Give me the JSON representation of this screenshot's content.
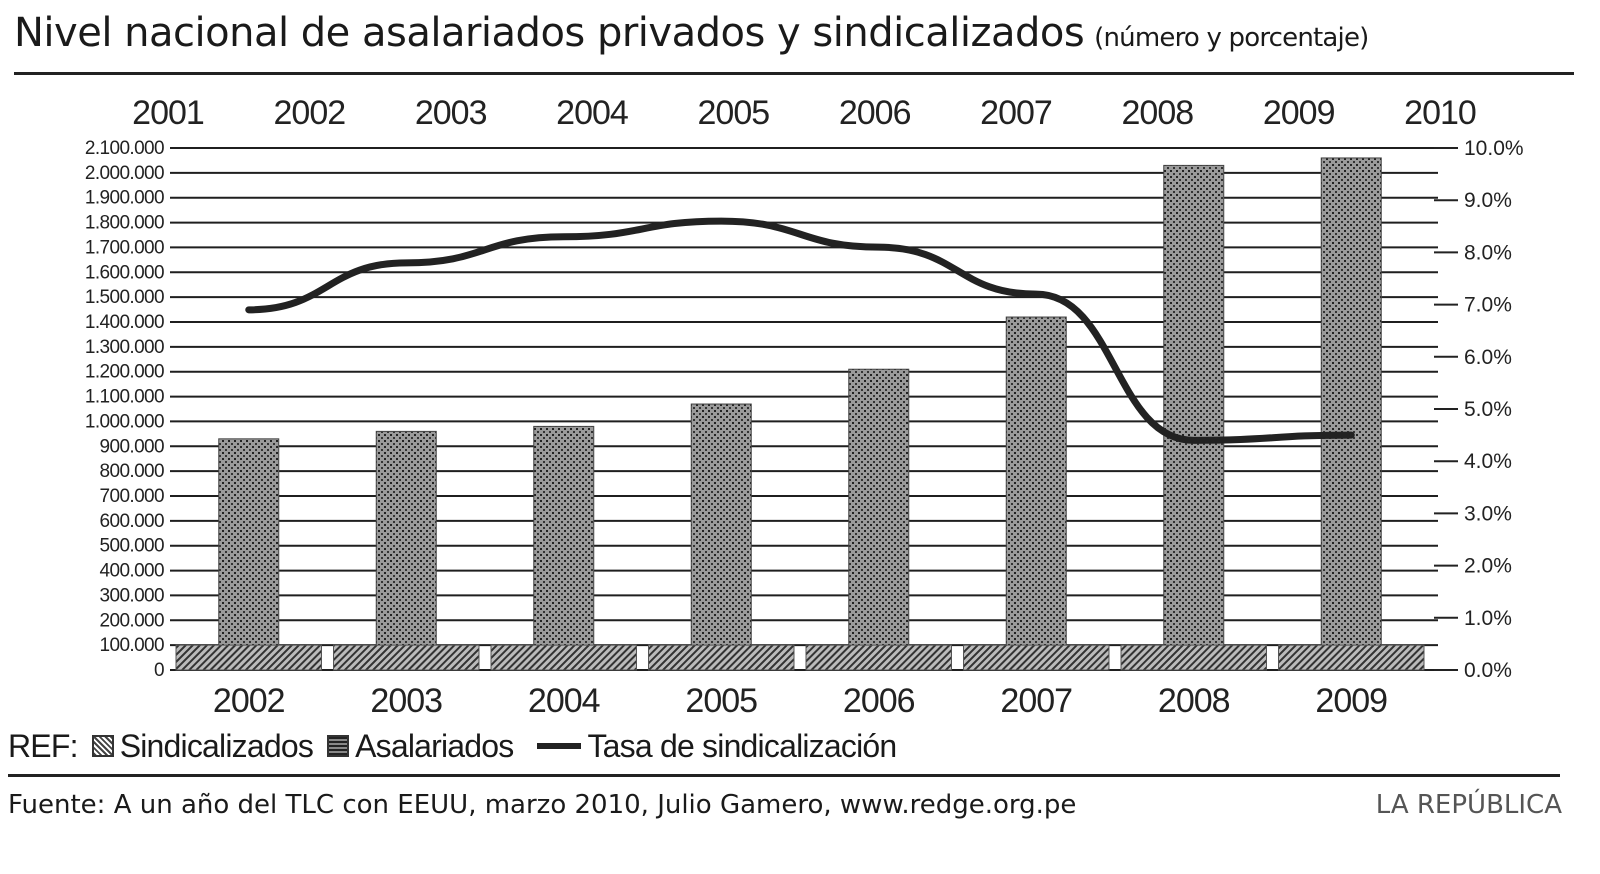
{
  "header": {
    "title": "Nivel nacional de asalariados privados y sindicalizados",
    "subtitle": "(número y porcentaje)"
  },
  "legend": {
    "ref_label": "REF:",
    "items": [
      "Sindicalizados",
      "Asalariados",
      "Tasa de sindicalización"
    ]
  },
  "footer": {
    "source": "Fuente: A un año del TLC con EEUU, marzo 2010, Julio Gamero, www.redge.org.pe",
    "brand": "LA REPÚBLICA"
  },
  "chart_data": {
    "type": "bar",
    "top_years": [
      "2001",
      "2002",
      "2003",
      "2004",
      "2005",
      "2006",
      "2007",
      "2008",
      "2009",
      "2010"
    ],
    "categories": [
      "2002",
      "2003",
      "2004",
      "2005",
      "2006",
      "2007",
      "2008",
      "2009"
    ],
    "series": [
      {
        "name": "Asalariados",
        "type": "bar",
        "axis": "left",
        "values": [
          930000,
          960000,
          980000,
          1070000,
          1210000,
          1420000,
          2030000,
          2060000
        ]
      },
      {
        "name": "Sindicalizados",
        "type": "bar",
        "axis": "left",
        "values": [
          100000,
          100000,
          100000,
          100000,
          100000,
          100000,
          100000,
          100000
        ]
      },
      {
        "name": "Tasa de sindicalización",
        "type": "line",
        "axis": "right",
        "unit": "%",
        "values": [
          6.9,
          7.8,
          8.3,
          8.6,
          8.1,
          7.2,
          4.4,
          4.5
        ]
      }
    ],
    "left_axis": {
      "ylim": [
        0,
        2100000
      ],
      "ticks": [
        "0",
        "100.000",
        "200.000",
        "300.000",
        "400.000",
        "500.000",
        "600.000",
        "700.000",
        "800.000",
        "900.000",
        "1.000.000",
        "1.100.000",
        "1.200.000",
        "1.300.000",
        "1.400.000",
        "1.500.000",
        "1.600.000",
        "1.700.000",
        "1.800.000",
        "1.900.000",
        "2.000.000",
        "2.100.000"
      ]
    },
    "right_axis": {
      "ylim": [
        0,
        10
      ],
      "ticks": [
        "0.0%",
        "1.0%",
        "2.0%",
        "3.0%",
        "4.0%",
        "5.0%",
        "6.0%",
        "7.0%",
        "8.0%",
        "9.0%",
        "10.0%"
      ]
    },
    "grid": true,
    "legend_position": "bottom-left",
    "colors": {
      "bar_fill": "#8a8a8a",
      "bar_dark": "#2a2a2a",
      "line": "#222222",
      "grid": "#1f1f1f"
    }
  }
}
